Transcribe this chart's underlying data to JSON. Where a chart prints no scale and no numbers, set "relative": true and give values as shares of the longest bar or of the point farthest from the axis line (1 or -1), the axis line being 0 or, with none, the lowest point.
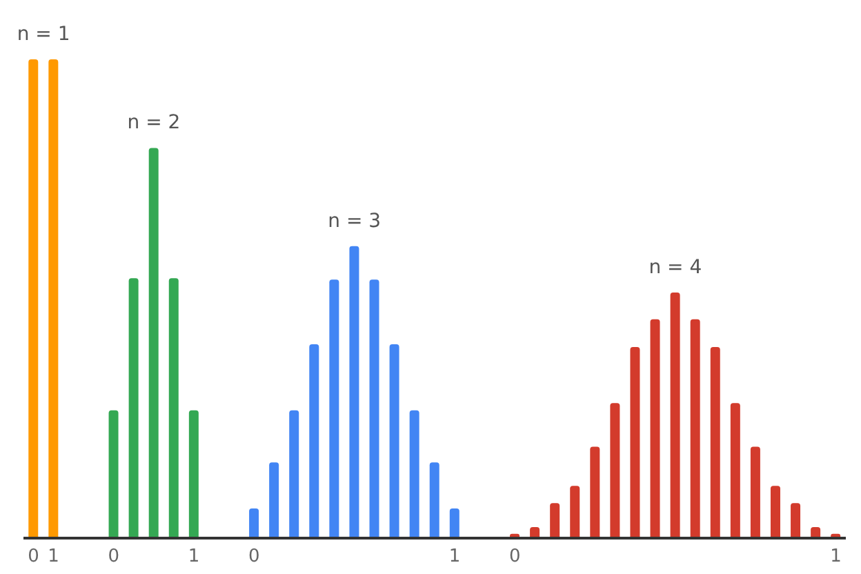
{
  "chart_data": {
    "type": "bar",
    "relative": true,
    "categories": [
      "0",
      "1",
      null,
      null,
      "0",
      null,
      null,
      null,
      "1",
      null,
      null,
      "0",
      null,
      null,
      null,
      null,
      null,
      null,
      null,
      null,
      null,
      "1",
      null,
      null,
      "0",
      null,
      null,
      null,
      null,
      null,
      null,
      null,
      null,
      null,
      null,
      null,
      null,
      null,
      null,
      null,
      "1"
    ],
    "series": [
      {
        "name": "n = 1",
        "color": "#ff9900",
        "values": [
          1,
          1,
          null,
          null,
          null,
          null,
          null,
          null,
          null,
          null,
          null,
          null,
          null,
          null,
          null,
          null,
          null,
          null,
          null,
          null,
          null,
          null,
          null,
          null,
          null,
          null,
          null,
          null,
          null,
          null,
          null,
          null,
          null,
          null,
          null,
          null,
          null,
          null,
          null,
          null,
          null
        ]
      },
      {
        "name": "n = 2",
        "color": "#34a853",
        "values": [
          null,
          null,
          null,
          null,
          0.267,
          0.543,
          0.815,
          0.543,
          0.267,
          null,
          null,
          null,
          null,
          null,
          null,
          null,
          null,
          null,
          null,
          null,
          null,
          null,
          null,
          null,
          null,
          null,
          null,
          null,
          null,
          null,
          null,
          null,
          null,
          null,
          null,
          null,
          null,
          null,
          null,
          null,
          null
        ]
      },
      {
        "name": "n = 3",
        "color": "#4285f4",
        "values": [
          null,
          null,
          null,
          null,
          null,
          null,
          null,
          null,
          null,
          null,
          null,
          0.062,
          0.158,
          0.267,
          0.405,
          0.54,
          0.61,
          0.54,
          0.405,
          0.267,
          0.158,
          0.062,
          null,
          null,
          null,
          null,
          null,
          null,
          null,
          null,
          null,
          null,
          null,
          null,
          null,
          null,
          null,
          null,
          null,
          null,
          null
        ]
      },
      {
        "name": "n = 4",
        "color": "#d33b2c",
        "values": [
          null,
          null,
          null,
          null,
          null,
          null,
          null,
          null,
          null,
          null,
          null,
          null,
          null,
          null,
          null,
          null,
          null,
          null,
          null,
          null,
          null,
          null,
          null,
          null,
          0.009,
          0.023,
          0.073,
          0.109,
          0.191,
          0.282,
          0.399,
          0.457,
          0.513,
          0.457,
          0.399,
          0.282,
          0.191,
          0.109,
          0.073,
          0.023,
          0.009
        ]
      }
    ]
  }
}
